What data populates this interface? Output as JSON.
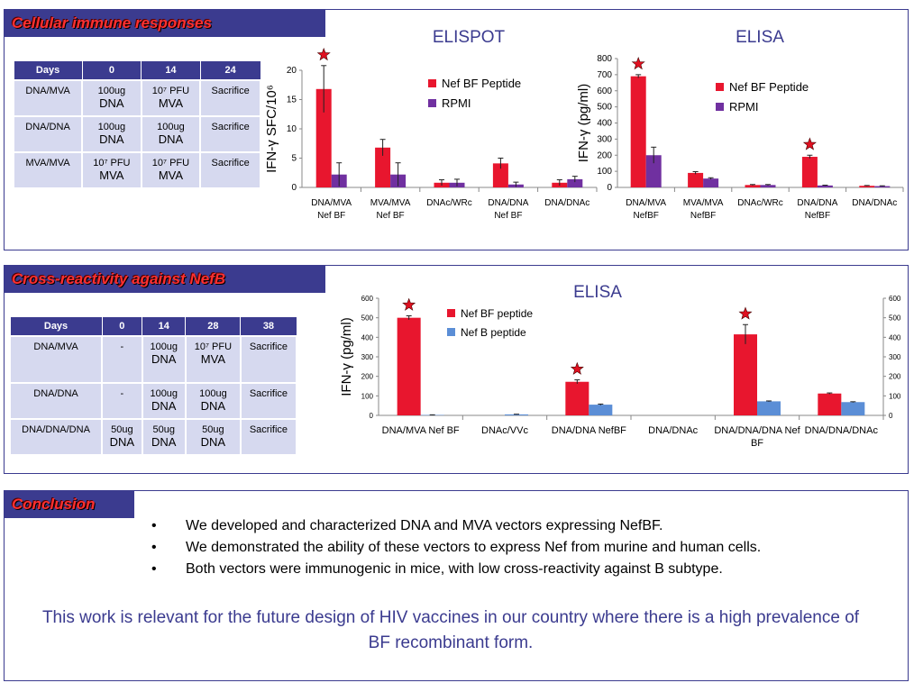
{
  "sections": {
    "cellular": {
      "title": "Cellular immune responses"
    },
    "cross": {
      "title": "Cross-reactivity against NefB"
    },
    "conclusion": {
      "title": "Conclusion"
    }
  },
  "table1": {
    "headers": [
      "Days",
      "0",
      "14",
      "24"
    ],
    "rows": [
      [
        {
          "small": "DNA/MVA",
          "big": ""
        },
        {
          "small": "100ug",
          "big": "DNA"
        },
        {
          "small": "10⁷ PFU",
          "big": "MVA"
        },
        {
          "small": "Sacrifice",
          "big": ""
        }
      ],
      [
        {
          "small": "DNA/DNA",
          "big": ""
        },
        {
          "small": "100ug",
          "big": "DNA"
        },
        {
          "small": "100ug",
          "big": "DNA"
        },
        {
          "small": "Sacrifice",
          "big": ""
        }
      ],
      [
        {
          "small": "MVA/MVA",
          "big": ""
        },
        {
          "small": "10⁷ PFU",
          "big": "MVA"
        },
        {
          "small": "10⁷ PFU",
          "big": "MVA"
        },
        {
          "small": "Sacrifice",
          "big": ""
        }
      ]
    ]
  },
  "table2": {
    "headers": [
      "Days",
      "0",
      "14",
      "28",
      "38"
    ],
    "rows": [
      [
        {
          "small": "DNA/MVA",
          "big": ""
        },
        {
          "small": "-",
          "big": ""
        },
        {
          "small": "100ug",
          "big": "DNA"
        },
        {
          "small": "10⁷ PFU",
          "big": "MVA"
        },
        {
          "small": "Sacrifice",
          "big": ""
        }
      ],
      [
        {
          "small": "DNA/DNA",
          "big": ""
        },
        {
          "small": "-",
          "big": ""
        },
        {
          "small": "100ug",
          "big": "DNA"
        },
        {
          "small": "100ug",
          "big": "DNA"
        },
        {
          "small": "Sacrifice",
          "big": ""
        }
      ],
      [
        {
          "small": "DNA/DNA/DNA",
          "big": ""
        },
        {
          "small": "50ug",
          "big": "DNA"
        },
        {
          "small": "50ug",
          "big": "DNA"
        },
        {
          "small": "50ug",
          "big": "DNA"
        },
        {
          "small": "Sacrifice",
          "big": ""
        }
      ]
    ]
  },
  "colors": {
    "red": "#e8162e",
    "purple": "#7030a0",
    "blue": "#5b8ed6",
    "navy": "#3b3b8f",
    "star": "#e01020"
  },
  "chart_data": [
    {
      "type": "bar",
      "title": "ELISPOT",
      "ylabel": "IFN-γ SFC/10⁶",
      "ylim": [
        0,
        20
      ],
      "yticks": [
        0,
        5,
        10,
        15,
        20
      ],
      "categories": [
        [
          "DNA/MVA",
          "Nef BF"
        ],
        [
          "MVA/MVA",
          "Nef BF"
        ],
        [
          "DNAc/WRc"
        ],
        [
          "DNA/DNA",
          "Nef BF"
        ],
        [
          "DNA/DNAc"
        ]
      ],
      "series": [
        {
          "name": "Nef BF Peptide",
          "color": "#e8162e",
          "values": [
            16.8,
            6.8,
            0.8,
            4.1,
            0.8
          ],
          "errors": [
            4,
            1.4,
            0.5,
            0.9,
            0.5
          ]
        },
        {
          "name": "RPMI",
          "color": "#7030a0",
          "values": [
            2.2,
            2.2,
            0.8,
            0.5,
            1.4
          ],
          "errors": [
            2.0,
            2.0,
            0.6,
            0.4,
            0.5
          ]
        }
      ],
      "stars": [
        0
      ]
    },
    {
      "type": "bar",
      "title": "ELISA",
      "ylabel": "IFN-γ (pg/ml)",
      "ylim": [
        0,
        800
      ],
      "yticks": [
        0,
        100,
        200,
        300,
        400,
        500,
        600,
        700,
        800
      ],
      "categories": [
        [
          "DNA/MVA",
          "NefBF"
        ],
        [
          "MVA/MVA",
          "NefBF"
        ],
        [
          "DNAc/WRc"
        ],
        [
          "DNA/DNA",
          "NefBF"
        ],
        [
          "DNA/DNAc"
        ]
      ],
      "series": [
        {
          "name": "Nef BF Peptide",
          "color": "#e8162e",
          "values": [
            690,
            90,
            15,
            190,
            10
          ],
          "errors": [
            10,
            8,
            3,
            10,
            2
          ]
        },
        {
          "name": "RPMI",
          "color": "#7030a0",
          "values": [
            200,
            55,
            15,
            12,
            8
          ],
          "errors": [
            50,
            5,
            3,
            2,
            2
          ]
        }
      ],
      "stars": [
        0,
        3
      ]
    },
    {
      "type": "bar",
      "title": "ELISA",
      "ylabel": "IFN-γ (pg/ml)",
      "ylim": [
        0,
        600
      ],
      "yticks": [
        0,
        100,
        200,
        300,
        400,
        500,
        600
      ],
      "categories": [
        [
          "DNA/MVA Nef BF"
        ],
        [
          "DNAc/VVc"
        ],
        [
          "DNA/DNA NefBF"
        ],
        [
          "DNA/DNAc"
        ],
        [
          "DNA/DNA/DNA Nef",
          "BF"
        ],
        [
          "DNA/DNA/DNAc"
        ]
      ],
      "series": [
        {
          "name": "Nef BF peptide",
          "color": "#e8162e",
          "values": [
            500,
            0,
            172,
            0,
            415,
            112
          ],
          "errors": [
            10,
            0,
            10,
            0,
            50,
            3
          ]
        },
        {
          "name": "Nef B peptide",
          "color": "#5b8ed6",
          "values": [
            2,
            5,
            55,
            0,
            72,
            68
          ],
          "errors": [
            1,
            1,
            3,
            0,
            2,
            2
          ]
        }
      ],
      "stars": [
        0,
        2,
        4
      ]
    }
  ],
  "conclusion": {
    "bullet": "•",
    "points": [
      "We developed and characterized DNA and MVA vectors expressing NefBF.",
      "We demonstrated the ability of these vectors to express Nef from murine and human cells.",
      "Both vectors were immunogenic in mice, with low cross-reactivity against B subtype."
    ],
    "relevance": "This work is relevant for the future design of HIV vaccines in our country where there is a high prevalence of BF recombinant form."
  }
}
